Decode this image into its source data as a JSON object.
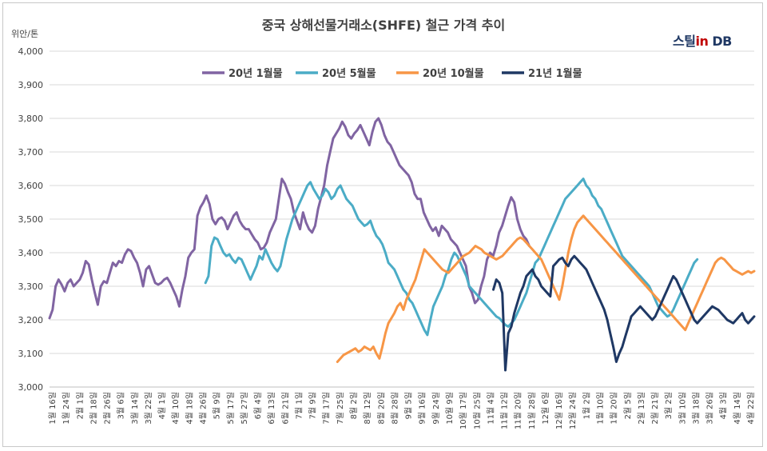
{
  "title": "중국 상해선물거래소(SHFE) 철근 가격 추이",
  "unit_label": "위안/톤",
  "brand": {
    "main": "스틸",
    "accent": "in",
    "tail": " DB"
  },
  "chart_data": {
    "type": "line",
    "title": "중국 상해선물거래소(SHFE) 철근 가격 추이",
    "ylabel": "위안/톤",
    "ylim": [
      3000,
      4000
    ],
    "yticks": [
      "3,000",
      "3,100",
      "3,200",
      "3,300",
      "3,400",
      "3,500",
      "3,600",
      "3,700",
      "3,800",
      "3,900",
      "4,000"
    ],
    "grid": true,
    "legend_position": "top",
    "x_labels": [
      "1월 16일",
      "1월 24일",
      "2월 1일",
      "2월 18일",
      "2월 26일",
      "3월 6일",
      "3월 14일",
      "3월 22일",
      "4월 1일",
      "4월 10일",
      "4월 18일",
      "4월 26일",
      "5월 9일",
      "5월 17일",
      "5월 27일",
      "6월 4일",
      "6월 13일",
      "6월 21일",
      "7월 1일",
      "7월 9일",
      "7월 17일",
      "7월 25일",
      "8월 2일",
      "8월 12일",
      "8월 20일",
      "8월 28일",
      "9월 5일",
      "9월 16일",
      "9월 24일",
      "10월 9일",
      "10월 17일",
      "10월 25일",
      "11월 4일",
      "11월 12일",
      "11월 20일",
      "11월 28일",
      "12월 6일",
      "12월 16일",
      "12월 24일",
      "1월 2일",
      "1월 10일",
      "1월 20일",
      "2월 5일",
      "2월 13일",
      "2월 21일",
      "3월 2일",
      "3월 10일",
      "3월 18일",
      "3월 26일",
      "4월 3일",
      "4월 14일",
      "4월 22일"
    ],
    "series": [
      {
        "name": "20년 1월물",
        "color": "#8064a2",
        "x_start": 0,
        "x_end": 160,
        "values": [
          3205,
          3230,
          3300,
          3320,
          3305,
          3285,
          3310,
          3320,
          3300,
          3310,
          3320,
          3340,
          3375,
          3365,
          3320,
          3280,
          3245,
          3300,
          3315,
          3310,
          3340,
          3370,
          3360,
          3375,
          3370,
          3395,
          3410,
          3405,
          3385,
          3370,
          3340,
          3300,
          3350,
          3360,
          3335,
          3310,
          3305,
          3310,
          3320,
          3325,
          3310,
          3290,
          3270,
          3240,
          3290,
          3330,
          3385,
          3400,
          3410,
          3510,
          3535,
          3550,
          3570,
          3545,
          3500,
          3485,
          3500,
          3505,
          3495,
          3470,
          3490,
          3510,
          3520,
          3495,
          3480,
          3470,
          3470,
          3455,
          3440,
          3430,
          3410,
          3415,
          3430,
          3460,
          3480,
          3500,
          3560,
          3620,
          3605,
          3580,
          3560,
          3520,
          3495,
          3470,
          3520,
          3490,
          3470,
          3460,
          3480,
          3530,
          3565,
          3600,
          3660,
          3700,
          3740,
          3755,
          3770,
          3790,
          3775,
          3750,
          3740,
          3755,
          3765,
          3780,
          3760,
          3740,
          3720,
          3760,
          3790,
          3800,
          3780,
          3750,
          3730,
          3720,
          3700,
          3680,
          3660,
          3650,
          3640,
          3630,
          3610,
          3575,
          3560,
          3560,
          3520,
          3500,
          3480,
          3465,
          3475,
          3450,
          3480,
          3470,
          3460,
          3440,
          3430,
          3420,
          3400,
          3380,
          3360,
          3300,
          3280,
          3250,
          3260,
          3300,
          3330,
          3380,
          3400,
          3390,
          3420,
          3460,
          3480,
          3510,
          3540,
          3565,
          3550,
          3500,
          3470,
          3450,
          3440,
          3420
        ]
      },
      {
        "name": "20년 5월물",
        "color": "#4bacc6",
        "x_start": 52,
        "x_end": 216,
        "values": [
          3310,
          3330,
          3420,
          3445,
          3440,
          3420,
          3400,
          3390,
          3395,
          3380,
          3370,
          3385,
          3380,
          3360,
          3340,
          3320,
          3340,
          3360,
          3390,
          3380,
          3410,
          3390,
          3370,
          3355,
          3345,
          3360,
          3400,
          3440,
          3470,
          3500,
          3520,
          3540,
          3560,
          3580,
          3600,
          3610,
          3590,
          3575,
          3560,
          3570,
          3590,
          3580,
          3560,
          3570,
          3590,
          3600,
          3580,
          3560,
          3550,
          3540,
          3520,
          3500,
          3490,
          3480,
          3485,
          3495,
          3470,
          3450,
          3440,
          3425,
          3400,
          3370,
          3360,
          3350,
          3330,
          3310,
          3290,
          3280,
          3260,
          3250,
          3230,
          3210,
          3190,
          3170,
          3155,
          3200,
          3240,
          3260,
          3280,
          3300,
          3330,
          3350,
          3380,
          3400,
          3390,
          3370,
          3350,
          3330,
          3300,
          3290,
          3280,
          3270,
          3260,
          3250,
          3240,
          3230,
          3220,
          3210,
          3205,
          3195,
          3185,
          3180,
          3190,
          3200,
          3220,
          3240,
          3260,
          3280,
          3310,
          3340,
          3370,
          3380,
          3400,
          3420,
          3440,
          3460,
          3480,
          3500,
          3520,
          3540,
          3560,
          3570,
          3580,
          3590,
          3600,
          3610,
          3620,
          3600,
          3590,
          3570,
          3560,
          3540,
          3530,
          3510,
          3490,
          3470,
          3450,
          3430,
          3410,
          3390,
          3380,
          3370,
          3360,
          3350,
          3340,
          3330,
          3320,
          3310,
          3300,
          3280,
          3260,
          3240,
          3230,
          3220,
          3210,
          3215,
          3230,
          3250,
          3270,
          3290,
          3310,
          3330,
          3350,
          3370,
          3380
        ]
      },
      {
        "name": "20년 10월물",
        "color": "#f79646",
        "x_start": 96,
        "x_end": 235,
        "values": [
          3075,
          3085,
          3095,
          3100,
          3105,
          3110,
          3115,
          3105,
          3110,
          3120,
          3115,
          3110,
          3120,
          3100,
          3085,
          3120,
          3160,
          3190,
          3205,
          3220,
          3240,
          3250,
          3230,
          3260,
          3280,
          3300,
          3320,
          3350,
          3380,
          3410,
          3400,
          3390,
          3380,
          3370,
          3360,
          3350,
          3345,
          3340,
          3350,
          3360,
          3370,
          3380,
          3390,
          3395,
          3400,
          3410,
          3420,
          3415,
          3410,
          3400,
          3395,
          3390,
          3385,
          3380,
          3385,
          3390,
          3400,
          3410,
          3420,
          3430,
          3440,
          3445,
          3440,
          3430,
          3420,
          3410,
          3400,
          3390,
          3380,
          3360,
          3340,
          3320,
          3300,
          3280,
          3260,
          3300,
          3350,
          3400,
          3440,
          3470,
          3490,
          3500,
          3510,
          3500,
          3490,
          3480,
          3470,
          3460,
          3450,
          3440,
          3430,
          3420,
          3410,
          3400,
          3390,
          3380,
          3370,
          3360,
          3350,
          3340,
          3330,
          3320,
          3310,
          3300,
          3290,
          3280,
          3270,
          3260,
          3250,
          3240,
          3230,
          3220,
          3210,
          3200,
          3190,
          3180,
          3170,
          3190,
          3210,
          3230,
          3250,
          3270,
          3290,
          3310,
          3330,
          3350,
          3370,
          3380,
          3385,
          3380,
          3370,
          3360,
          3350,
          3345,
          3340,
          3335,
          3340,
          3345,
          3340,
          3345
        ]
      },
      {
        "name": "21년 1월물",
        "color": "#1f3864",
        "x_start": 148,
        "x_end": 235,
        "values": [
          3290,
          3320,
          3310,
          3280,
          3050,
          3160,
          3180,
          3220,
          3250,
          3280,
          3300,
          3330,
          3340,
          3350,
          3330,
          3320,
          3300,
          3290,
          3280,
          3270,
          3360,
          3370,
          3380,
          3385,
          3370,
          3360,
          3380,
          3390,
          3380,
          3370,
          3360,
          3350,
          3330,
          3310,
          3290,
          3270,
          3250,
          3230,
          3200,
          3160,
          3120,
          3075,
          3100,
          3120,
          3150,
          3180,
          3210,
          3220,
          3230,
          3240,
          3230,
          3220,
          3210,
          3200,
          3210,
          3230,
          3250,
          3270,
          3290,
          3310,
          3330,
          3320,
          3300,
          3280,
          3260,
          3240,
          3220,
          3200,
          3190,
          3200,
          3210,
          3220,
          3230,
          3240,
          3235,
          3230,
          3220,
          3210,
          3200,
          3195,
          3190,
          3200,
          3210,
          3220,
          3200,
          3190,
          3200,
          3210
        ]
      }
    ]
  }
}
